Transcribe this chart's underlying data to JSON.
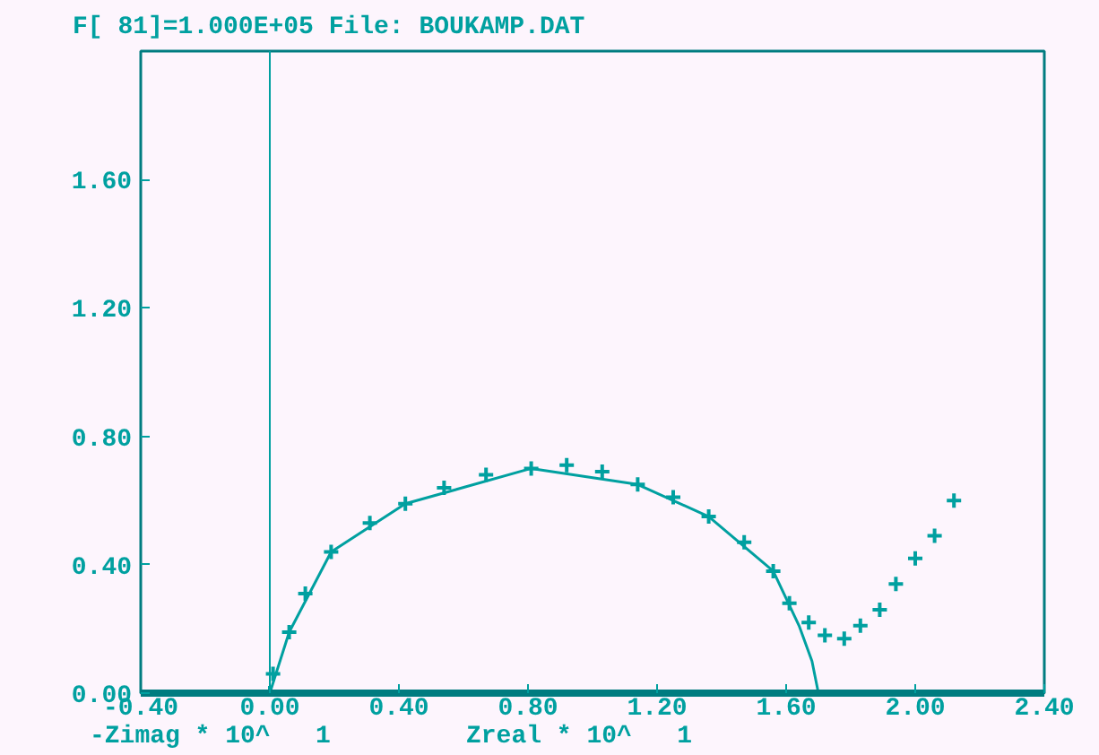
{
  "chart_data": {
    "type": "scatter",
    "title": "F[ 81]=1.000E+05   File: BOUKAMP.DAT",
    "xlabel": "Zreal * 10^   1",
    "ylabel": "-Zimag * 10^   1",
    "xlim": [
      -0.4,
      2.4
    ],
    "ylim": [
      0,
      2.0
    ],
    "xticks": [
      {
        "value": -0.4,
        "label": "-0.40"
      },
      {
        "value": 0,
        "label": "0.00"
      },
      {
        "value": 0.4,
        "label": "0.40"
      },
      {
        "value": 0.8,
        "label": "0.80"
      },
      {
        "value": 1.2,
        "label": "1.20"
      },
      {
        "value": 1.6,
        "label": "1.60"
      },
      {
        "value": 2.0,
        "label": "2.00"
      },
      {
        "value": 2.4,
        "label": "2.40"
      }
    ],
    "yticks": [
      {
        "value": 0,
        "label": "0.00"
      },
      {
        "value": 0.4,
        "label": "0.40"
      },
      {
        "value": 0.8,
        "label": "0.80"
      },
      {
        "value": 1.2,
        "label": "1.20"
      },
      {
        "value": 1.6,
        "label": "1.60"
      }
    ],
    "grid": false,
    "ref_lines": [
      {
        "axis": "x",
        "value": 0,
        "color": "#00a0a0"
      }
    ],
    "series": [
      {
        "marker": "cross",
        "color": "#00a0a0",
        "x": [
          0,
          0.01,
          0.06,
          0.11,
          0.19,
          0.31,
          0.42,
          0.54,
          0.67,
          0.81,
          0.92,
          1.03,
          1.14,
          1.25,
          1.36,
          1.47,
          1.56,
          1.61,
          1.67,
          1.72,
          1.78,
          1.83,
          1.89,
          1.94,
          2.0,
          2.06,
          2.12
        ],
        "values": [
          0,
          0.06,
          0.19,
          0.31,
          0.44,
          0.53,
          0.59,
          0.64,
          0.68,
          0.7,
          0.71,
          0.69,
          0.65,
          0.61,
          0.55,
          0.47,
          0.38,
          0.28,
          0.22,
          0.18,
          0.17,
          0.21,
          0.26,
          0.34,
          0.42,
          0.49,
          0.6
        ]
      },
      {
        "type": "line",
        "marker": "none",
        "line_style": "solid",
        "color": "#00a0a0",
        "x": [
          0,
          0.06,
          0.19,
          0.42,
          0.81,
          1.14,
          1.36,
          1.56,
          1.64,
          1.68,
          1.7
        ],
        "values": [
          0,
          0.19,
          0.44,
          0.59,
          0.7,
          0.65,
          0.55,
          0.38,
          0.21,
          0.1,
          0
        ]
      }
    ]
  }
}
